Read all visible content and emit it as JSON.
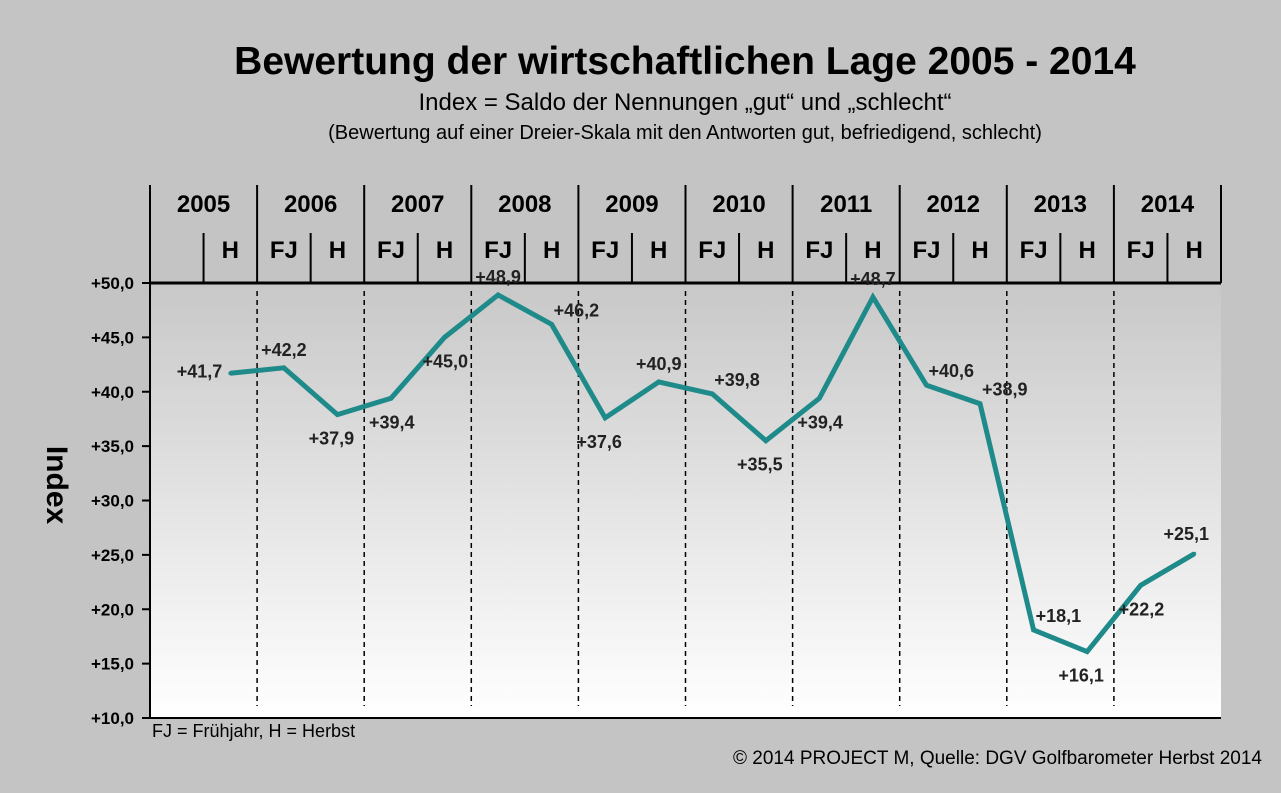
{
  "header": {
    "title": "Bewertung der wirtschaftlichen Lage 2005 - 2014",
    "subtitle": "Index = Saldo der Nennungen „gut“ und „schlecht“",
    "subtitle2": "(Bewertung auf einer Dreier-Skala mit den Antworten gut, befriedigend, schlecht)"
  },
  "legend_note": "FJ = Frühjahr, H = Herbst",
  "source": "© 2014 PROJECT M, Quelle: DGV Golfbarometer Herbst 2014",
  "colors": {
    "line": "#1f8a8a",
    "background": "#c4c4c4"
  },
  "chart_data": {
    "type": "line",
    "ylabel": "Index",
    "ylim": [
      10,
      50
    ],
    "yticks": [
      "+10,0",
      "+15,0",
      "+20,0",
      "+25,0",
      "+30,0",
      "+35,0",
      "+40,0",
      "+45,0",
      "+50,0"
    ],
    "years": [
      "2005",
      "2006",
      "2007",
      "2008",
      "2009",
      "2010",
      "2011",
      "2012",
      "2013",
      "2014"
    ],
    "seasons": [
      "",
      "H",
      "FJ",
      "H",
      "FJ",
      "H",
      "FJ",
      "H",
      "FJ",
      "H",
      "FJ",
      "H",
      "FJ",
      "H",
      "FJ",
      "H",
      "FJ",
      "H",
      "FJ",
      "H"
    ],
    "x": [
      "2005 H",
      "2006 FJ",
      "2006 H",
      "2007 FJ",
      "2007 H",
      "2008 FJ",
      "2008 H",
      "2009 FJ",
      "2009 H",
      "2010 FJ",
      "2010 H",
      "2011 FJ",
      "2011 H",
      "2012 FJ",
      "2012 H",
      "2013 FJ",
      "2013 H",
      "2014 FJ",
      "2014 H"
    ],
    "values": [
      41.7,
      42.2,
      37.9,
      39.4,
      45.0,
      48.9,
      46.2,
      37.6,
      40.9,
      39.8,
      35.5,
      39.4,
      48.7,
      40.6,
      38.9,
      18.1,
      16.1,
      22.2,
      25.1
    ],
    "labels": [
      "+41,7",
      "+42,2",
      "+37,9",
      "+39,4",
      "+45,0",
      "+48,9",
      "+46,2",
      "+37,6",
      "+40,9",
      "+39,8",
      "+35,5",
      "+39,4",
      "+48,7",
      "+40,6",
      "+38,9",
      "+18,1",
      "+16,1",
      "+22,2",
      "+25,1"
    ],
    "grid": false,
    "legend": "none"
  }
}
